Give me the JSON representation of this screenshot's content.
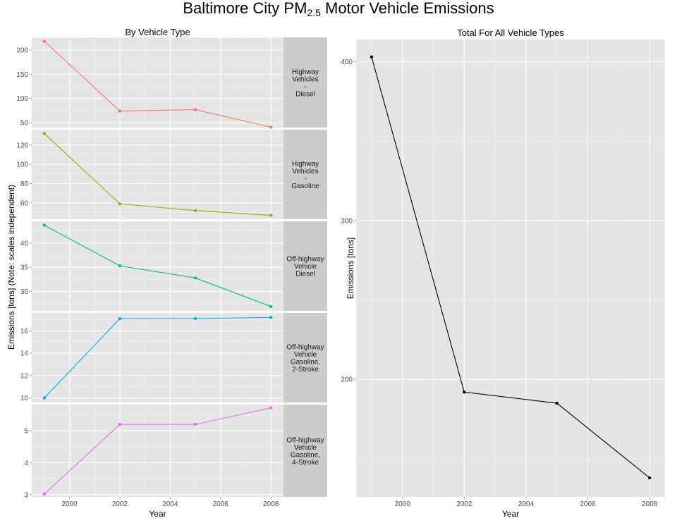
{
  "title": {
    "prefix": "Baltimore City PM",
    "subscript": "2.5",
    "suffix": " Motor Vehicle Emissions"
  },
  "chart_data": [
    {
      "type": "line",
      "title": "By Vehicle Type",
      "xlabel": "Year",
      "ylabel": "Emissions [tons] (Note: scales independent)",
      "x": [
        1999,
        2002,
        2005,
        2008
      ],
      "xticks": [
        2000,
        2002,
        2004,
        2006,
        2008
      ],
      "xlim": [
        1998.5,
        2008.5
      ],
      "grid": true,
      "legend": "none",
      "facets": [
        {
          "strip": [
            "Highway",
            "Vehicles",
            "-",
            "Diesel"
          ],
          "color": "#F8766D",
          "values": [
            218,
            74,
            77,
            41
          ],
          "ylim": [
            40,
            226
          ],
          "yticks": [
            50,
            100,
            150,
            200
          ]
        },
        {
          "strip": [
            "Highway",
            "Vehicles",
            "-",
            "Gasoline"
          ],
          "color": "#A3A500",
          "values": [
            132,
            59,
            52,
            47
          ],
          "ylim": [
            43,
            136
          ],
          "yticks": [
            60,
            80,
            100,
            120
          ]
        },
        {
          "strip": [
            "Off-highway",
            "Vehicle",
            "Diesel"
          ],
          "color": "#00BF7D",
          "values": [
            43.7,
            35.3,
            32.8,
            26.9
          ],
          "ylim": [
            26.0,
            44.5
          ],
          "yticks": [
            30,
            35,
            40
          ]
        },
        {
          "strip": [
            "Off-highway",
            "Vehicle",
            "Gasoline,",
            "2-Stroke"
          ],
          "color": "#00B0F6",
          "values": [
            10.0,
            17.1,
            17.1,
            17.2
          ],
          "ylim": [
            9.6,
            17.6
          ],
          "yticks": [
            10,
            12,
            14,
            16
          ]
        },
        {
          "strip": [
            "Off-highway",
            "Vehicle",
            "Gasoline,",
            "4-Stroke"
          ],
          "color": "#E76BF3",
          "values": [
            3.02,
            5.2,
            5.2,
            5.72
          ],
          "ylim": [
            2.93,
            5.82
          ],
          "yticks": [
            3,
            4,
            5
          ]
        }
      ]
    },
    {
      "type": "line",
      "title": "Total For All Vehicle Types",
      "xlabel": "Year",
      "ylabel": "Emissions [tons]",
      "color": "#000000",
      "x": [
        1999,
        2002,
        2005,
        2008
      ],
      "values": [
        403,
        192,
        185,
        138
      ],
      "xticks": [
        2000,
        2002,
        2004,
        2006,
        2008
      ],
      "xlim": [
        1998.5,
        2008.5
      ],
      "ylim": [
        126,
        414
      ],
      "yticks": [
        200,
        300,
        400
      ],
      "grid": true,
      "legend": "none"
    }
  ]
}
